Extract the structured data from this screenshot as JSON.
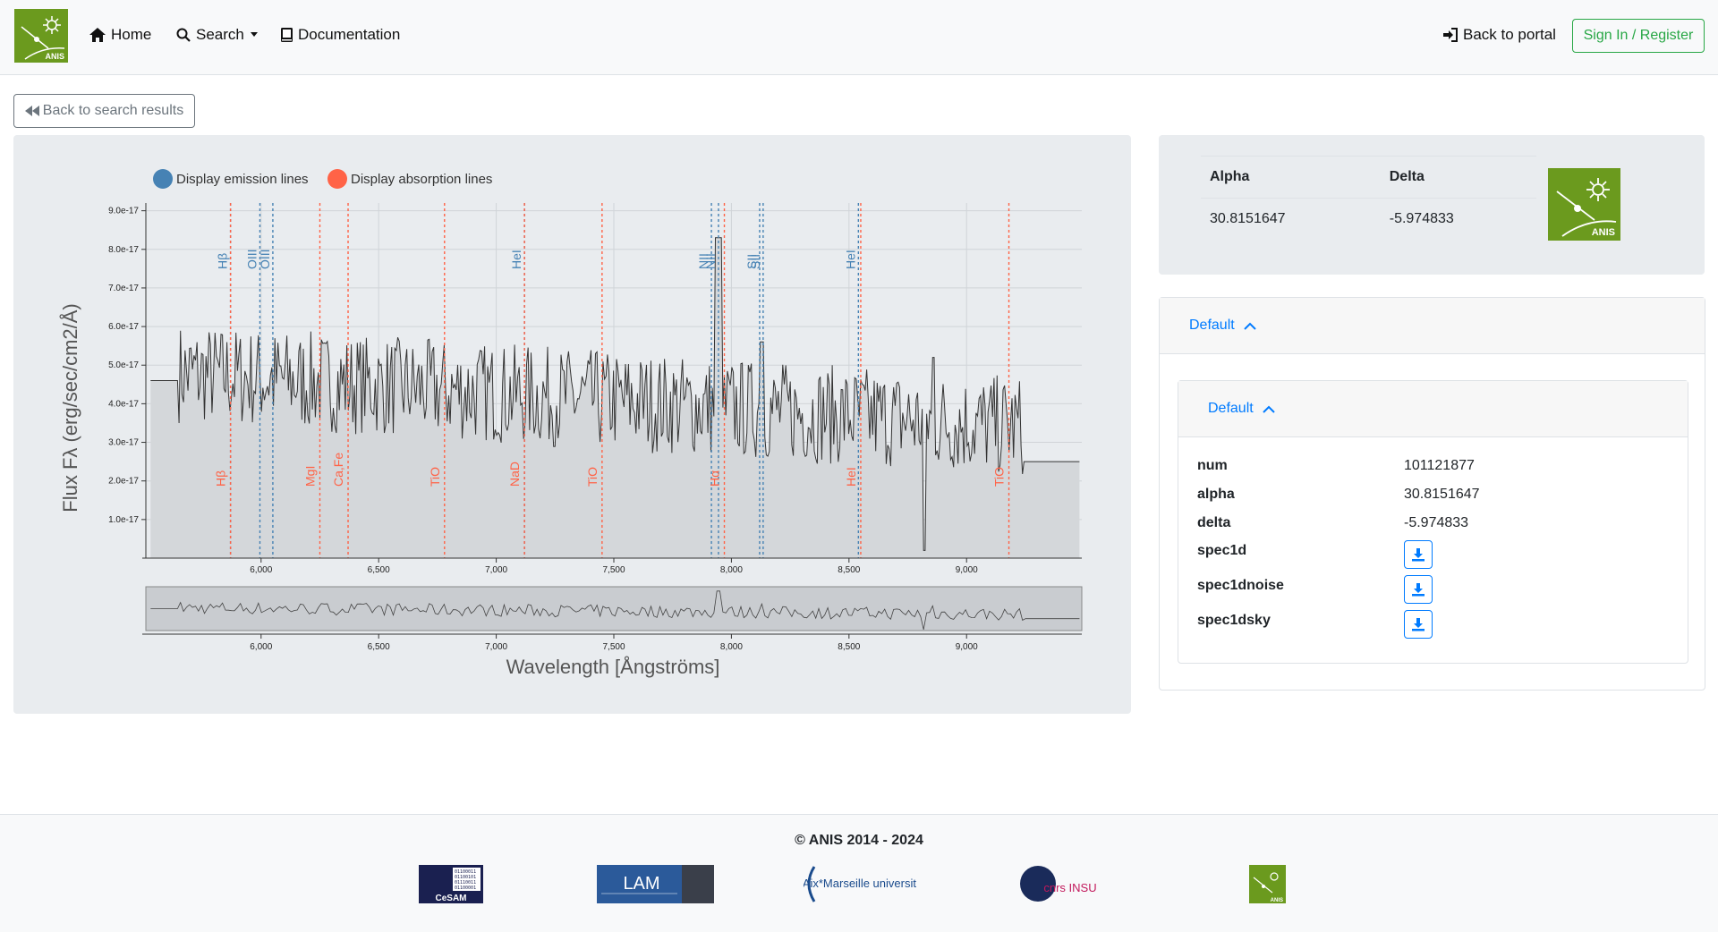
{
  "app": {
    "logo_label": "ANIS"
  },
  "nav": {
    "home": "Home",
    "search": "Search",
    "documentation": "Documentation",
    "back_portal": "Back to portal",
    "signin": "Sign In / Register"
  },
  "back_button": "Back to search results",
  "legend": {
    "emission": "Display emission lines",
    "absorption": "Display absorption lines",
    "emission_color": "#4682b4",
    "absorption_color": "#ff6347"
  },
  "chart_data": {
    "type": "line",
    "title": "",
    "xlabel": "Wavelength [Ångströms]",
    "ylabel": "Flux Fλ (erg/sec/cm2/Å)",
    "xlim": [
      5510,
      9490
    ],
    "ylim": [
      0,
      9.2e-17
    ],
    "x_ticks": [
      6000,
      6500,
      7000,
      7500,
      8000,
      8500,
      9000
    ],
    "x_tick_labels": [
      "6,000",
      "6,500",
      "7,000",
      "7,500",
      "8,000",
      "8,500",
      "9,000"
    ],
    "y_ticks": [
      1e-17,
      2e-17,
      3e-17,
      4e-17,
      5e-17,
      6e-17,
      7e-17,
      8e-17,
      9e-17
    ],
    "y_tick_labels": [
      "1.0e-17",
      "2.0e-17",
      "3.0e-17",
      "4.0e-17",
      "5.0e-17",
      "6.0e-17",
      "7.0e-17",
      "8.0e-17",
      "9.0e-17"
    ],
    "emission_lines": [
      {
        "name": "Hβ",
        "x": 5870
      },
      {
        "name": "OIII",
        "x": 5995
      },
      {
        "name": "OIII",
        "x": 6050
      },
      {
        "name": "HeI",
        "x": 7120
      },
      {
        "name": "NII",
        "x": 7915
      },
      {
        "name": "NII",
        "x": 7945
      },
      {
        "name": "SII",
        "x": 8120
      },
      {
        "name": "SII",
        "x": 8135
      },
      {
        "name": "HeI",
        "x": 8540
      }
    ],
    "absorption_lines": [
      {
        "name": "Hβ",
        "x": 5870
      },
      {
        "name": "MgI",
        "x": 6250
      },
      {
        "name": "Ca,Fe",
        "x": 6370
      },
      {
        "name": "TiO",
        "x": 6780
      },
      {
        "name": "NaD",
        "x": 7120
      },
      {
        "name": "TiO",
        "x": 7450
      },
      {
        "name": "Hα",
        "x": 7970
      },
      {
        "name": "HeI",
        "x": 8550
      },
      {
        "name": "TiO",
        "x": 9180
      }
    ],
    "series": [
      {
        "name": "spec1d",
        "x_start": 5530,
        "x_end": 9480,
        "base_flux": 4.5e-17
      }
    ]
  },
  "coords": {
    "alpha_label": "Alpha",
    "delta_label": "Delta",
    "alpha": "30.8151647",
    "delta": "-5.974833"
  },
  "accordion": {
    "outer_title": "Default",
    "inner_title": "Default",
    "fields": [
      {
        "key": "num",
        "value": "101121877"
      },
      {
        "key": "alpha",
        "value": "30.8151647"
      },
      {
        "key": "delta",
        "value": "-5.974833"
      }
    ],
    "downloads": [
      {
        "key": "spec1d"
      },
      {
        "key": "spec1dnoise"
      },
      {
        "key": "spec1dsky"
      }
    ]
  },
  "footer": {
    "copyright": "© ANIS 2014 - 2024",
    "logos": [
      "CeSAM",
      "LAM",
      "Aix*Marseille université",
      "cnrs INSU",
      "ANIS"
    ]
  }
}
